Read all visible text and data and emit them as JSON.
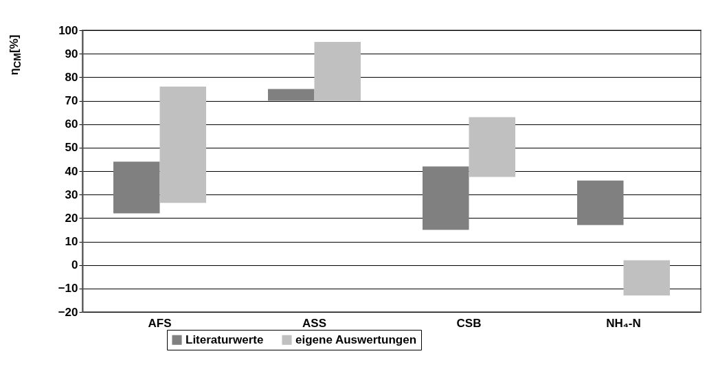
{
  "chart_data": {
    "type": "bar",
    "ylabel": "η$_{CM}$[%]",
    "categories": [
      "AFS",
      "ASS",
      "CSB",
      "NH₄-N"
    ],
    "series": [
      {
        "name": "Literaturwerte",
        "color": "#808080",
        "base": [
          22,
          70,
          15,
          17
        ],
        "values": [
          22,
          5,
          27,
          19
        ]
      },
      {
        "name": "eigene Auswertungen",
        "color": "#c0c0c0",
        "base": [
          26.5,
          70,
          37.5,
          -13
        ],
        "values": [
          49.5,
          25,
          25.5,
          15
        ]
      }
    ],
    "ylim": [
      -20,
      100
    ],
    "yticks": [
      -20,
      -10,
      0,
      10,
      20,
      30,
      40,
      50,
      60,
      70,
      80,
      90,
      100
    ],
    "grid": "y",
    "legend": "bottom"
  }
}
